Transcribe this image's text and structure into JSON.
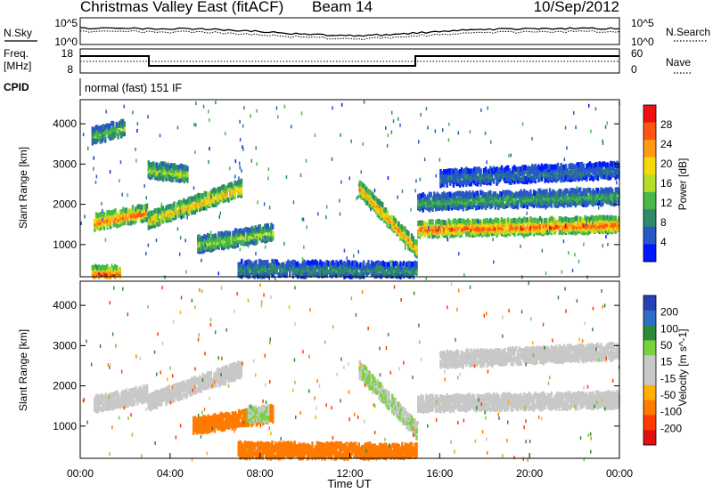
{
  "header": {
    "station": "Christmas Valley East (fitACF)",
    "beam": "Beam 14",
    "date": "10/Sep/2012"
  },
  "top_panels": {
    "nsky_label": "N.Sky",
    "nsky_ticks": [
      "10^5",
      "10^0"
    ],
    "nsearch_label": "N.Search",
    "nsearch_ticks": [
      "10^5",
      "10^0"
    ],
    "freq_label": [
      "Freq.",
      "[MHz]"
    ],
    "freq_ticks": [
      "18",
      "8"
    ],
    "nave_label": "Nave",
    "nave_ticks": [
      "60",
      "0"
    ],
    "cpid_label": "CPID",
    "cpid_text": "normal (fast) 151 IF"
  },
  "colors": {
    "power": [
      "#0018ff",
      "#2858c8",
      "#2e8a6a",
      "#47b84a",
      "#b5dd2a",
      "#f6d70a",
      "#ff9a12",
      "#ff5512",
      "#ef1010"
    ],
    "velocity": [
      "#2640b8",
      "#2c6ec6",
      "#2f8a3a",
      "#78d23a",
      "#c8c8c8",
      "#c8c8c8",
      "#ffb000",
      "#ff7a00",
      "#ff3b00",
      "#e01010"
    ]
  },
  "chart_data": [
    {
      "type": "heatmap",
      "name": "power",
      "ylabel": "Slant Range [km]",
      "yticks": [
        1000,
        2000,
        3000,
        4000
      ],
      "ylim": [
        200,
        4600
      ],
      "xlim": [
        "00:00",
        "24:00"
      ],
      "colorbar_label": "Power [dB]",
      "colorbar_ticks": [
        "4",
        "8",
        "12",
        "16",
        "20",
        "24",
        "28"
      ],
      "bands": [
        {
          "t": [
            0.6,
            3.0
          ],
          "center": [
            1550,
            1800
          ],
          "value": 26
        },
        {
          "t": [
            3.0,
            7.2
          ],
          "center": [
            1600,
            2400
          ],
          "value": 22
        },
        {
          "t": [
            5.2,
            8.6
          ],
          "center": [
            1000,
            1300
          ],
          "value": 16
        },
        {
          "t": [
            12.4,
            15.0
          ],
          "center": [
            2400,
            900
          ],
          "value": 24
        },
        {
          "t": [
            15.0,
            24.0
          ],
          "center": [
            1380,
            1500
          ],
          "value": 27
        },
        {
          "t": [
            15.0,
            24.0
          ],
          "center": [
            2050,
            2200
          ],
          "value": 12
        },
        {
          "t": [
            16.0,
            24.0
          ],
          "center": [
            2650,
            2850
          ],
          "value": 8
        },
        {
          "t": [
            0.5,
            2.0
          ],
          "center": [
            3700,
            3900
          ],
          "value": 14
        },
        {
          "t": [
            3.0,
            4.8
          ],
          "center": [
            2850,
            2750
          ],
          "value": 16
        },
        {
          "t": [
            7.0,
            15.0
          ],
          "center": [
            400,
            350
          ],
          "value": 10
        },
        {
          "t": [
            0.5,
            1.8
          ],
          "center": [
            280,
            280
          ],
          "value": 27
        }
      ]
    },
    {
      "type": "heatmap",
      "name": "velocity",
      "ylabel": "Slant Range [km]",
      "yticks": [
        1000,
        2000,
        3000,
        4000
      ],
      "ylim": [
        200,
        4600
      ],
      "xlim": [
        "00:00",
        "24:00"
      ],
      "xlabel": "Time UT",
      "xticks": [
        "00:00",
        "04:00",
        "08:00",
        "12:00",
        "16:00",
        "20:00",
        "00:00"
      ],
      "colorbar_label": "Velocity [m s^-1]",
      "colorbar_ticks": [
        "200",
        "100",
        "50",
        "15",
        "-15",
        "-50",
        "-100",
        "-200"
      ],
      "bands": [
        {
          "t": [
            0.6,
            3.0
          ],
          "center": [
            1550,
            1800
          ],
          "value": 0
        },
        {
          "t": [
            3.0,
            7.2
          ],
          "center": [
            1600,
            2400
          ],
          "value": 0
        },
        {
          "t": [
            5.0,
            8.6
          ],
          "center": [
            1000,
            1300
          ],
          "value": -60
        },
        {
          "t": [
            7.4,
            8.4
          ],
          "center": [
            1300,
            1300
          ],
          "value": 30
        },
        {
          "t": [
            12.4,
            15.0
          ],
          "center": [
            2400,
            900
          ],
          "value": 30
        },
        {
          "t": [
            15.0,
            24.0
          ],
          "center": [
            1550,
            1650
          ],
          "value": 0
        },
        {
          "t": [
            16.0,
            24.0
          ],
          "center": [
            2650,
            2850
          ],
          "value": 0
        },
        {
          "t": [
            7.0,
            15.0
          ],
          "center": [
            400,
            350
          ],
          "value": -60
        }
      ]
    }
  ]
}
